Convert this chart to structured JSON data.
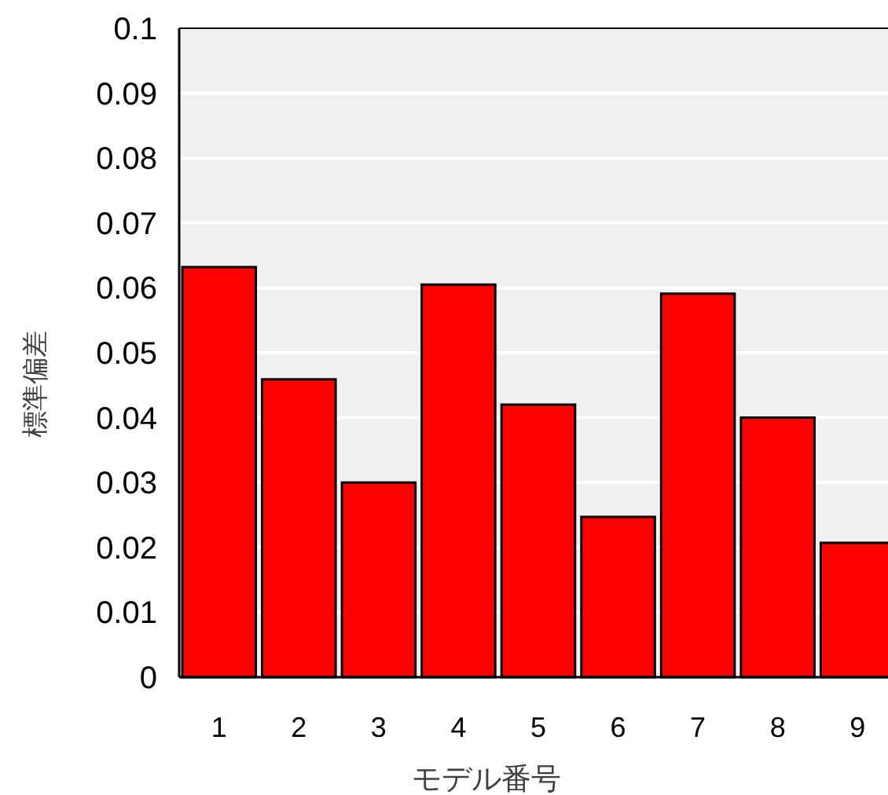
{
  "chart_data": {
    "type": "bar",
    "xlabel": "モデル番号",
    "ylabel": "標準偏差",
    "categories": [
      "1",
      "2",
      "3",
      "4",
      "5",
      "6",
      "7",
      "8",
      "9"
    ],
    "values": [
      0.0632,
      0.0459,
      0.03,
      0.0605,
      0.042,
      0.0247,
      0.0591,
      0.04,
      0.0207
    ],
    "color": "#ff0000",
    "ylim": [
      0,
      0.1
    ],
    "yticks": [
      0,
      0.01,
      0.02,
      0.03,
      0.04,
      0.05,
      0.06,
      0.07,
      0.08,
      0.09,
      0.1
    ],
    "grid": "y"
  }
}
